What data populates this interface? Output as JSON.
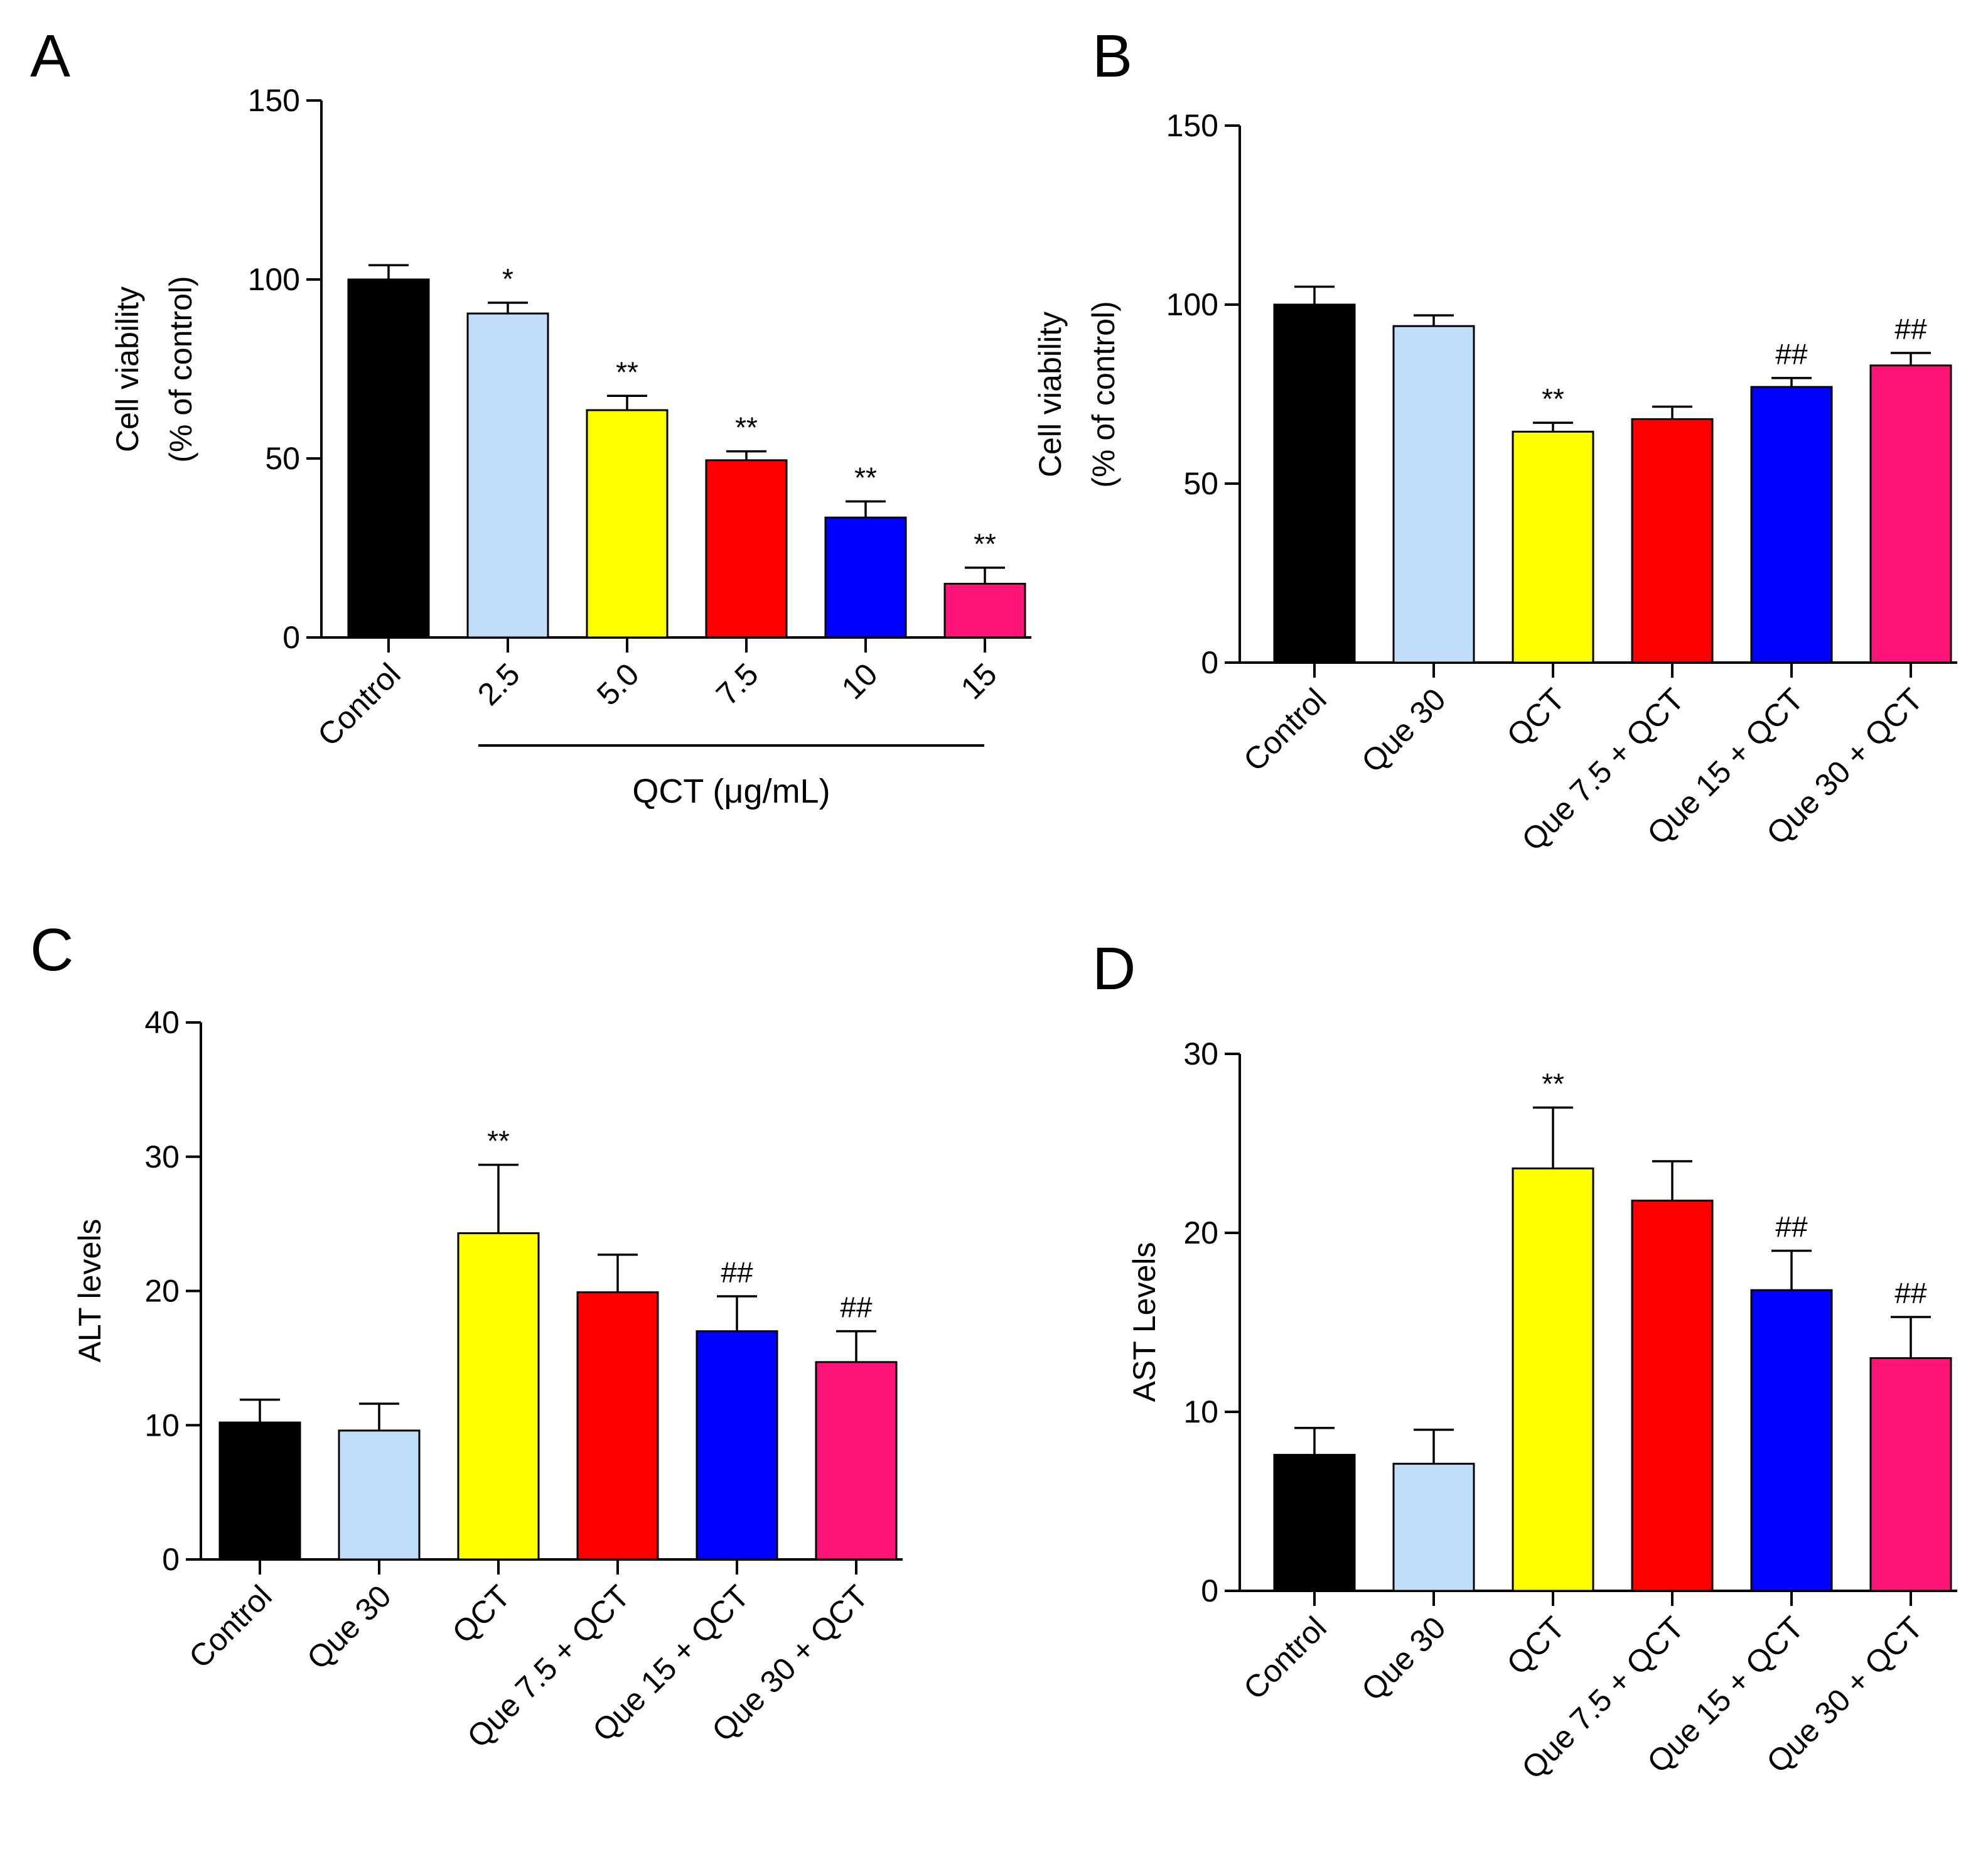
{
  "colors": {
    "Control": "#000000",
    "light-blue": "#c0defa",
    "yellow": "#ffff00",
    "red": "#ff0000",
    "blue": "#0000ff",
    "pink": "#ff1477"
  },
  "chart_data": [
    {
      "type": "bar",
      "panel": "A",
      "title": "",
      "xlabel": "",
      "ylabel": [
        "Cell viability",
        "(% of control)"
      ],
      "ylim": [
        0,
        150
      ],
      "yticks": [
        0,
        50,
        100,
        150
      ],
      "grid": false,
      "categories": [
        "Control",
        "2.5",
        "5.0",
        "7.5",
        "10",
        "15"
      ],
      "values": [
        100,
        90.5,
        63.5,
        49.5,
        33.5,
        15
      ],
      "errors": [
        4,
        3,
        4,
        2.5,
        4.5,
        4.5
      ],
      "annotations": [
        "",
        "*",
        "**",
        "**",
        "**",
        "**"
      ],
      "bar_colors": [
        "#000000",
        "#c0defa",
        "#ffff00",
        "#ff0000",
        "#0000ff",
        "#ff1477"
      ],
      "group_label": "QCT (μg/mL)"
    },
    {
      "type": "bar",
      "panel": "B",
      "title": "",
      "xlabel": "",
      "ylabel": [
        "Cell viability",
        "(% of control)"
      ],
      "ylim": [
        0,
        150
      ],
      "yticks": [
        0,
        50,
        100,
        150
      ],
      "grid": false,
      "categories": [
        "Control",
        "Que 30",
        "QCT",
        "Que 7.5 + QCT",
        "Que 15 + QCT",
        "Que 30 + QCT"
      ],
      "values": [
        100,
        94,
        64.5,
        68,
        77,
        83
      ],
      "errors": [
        5,
        3,
        2.5,
        3.5,
        2.5,
        3.5
      ],
      "annotations": [
        "",
        "",
        "**",
        "",
        "##",
        "##"
      ],
      "bar_colors": [
        "#000000",
        "#c0defa",
        "#ffff00",
        "#ff0000",
        "#0000ff",
        "#ff1477"
      ]
    },
    {
      "type": "bar",
      "panel": "C",
      "title": "",
      "xlabel": "",
      "ylabel": [
        "ALT levels"
      ],
      "ylim": [
        0,
        40
      ],
      "yticks": [
        0,
        10,
        20,
        30,
        40
      ],
      "grid": false,
      "categories": [
        "Control",
        "Que 30",
        "QCT",
        "Que 7.5 + QCT",
        "Que 15 + QCT",
        "Que 30 + QCT"
      ],
      "values": [
        10.2,
        9.6,
        24.3,
        19.9,
        17,
        14.7
      ],
      "errors": [
        1.7,
        2.0,
        5.1,
        2.8,
        2.6,
        2.3
      ],
      "annotations": [
        "",
        "",
        "**",
        "",
        "##",
        "##"
      ],
      "bar_colors": [
        "#000000",
        "#c0defa",
        "#ffff00",
        "#ff0000",
        "#0000ff",
        "#ff1477"
      ]
    },
    {
      "type": "bar",
      "panel": "D",
      "title": "",
      "xlabel": "",
      "ylabel": [
        "AST Levels"
      ],
      "ylim": [
        0,
        30
      ],
      "yticks": [
        0,
        10,
        20,
        30
      ],
      "grid": false,
      "categories": [
        "Control",
        "Que 30",
        "QCT",
        "Que 7.5 + QCT",
        "Que 15 + QCT",
        "Que 30 + QCT"
      ],
      "values": [
        7.6,
        7.1,
        23.6,
        21.8,
        16.8,
        13
      ],
      "errors": [
        1.5,
        1.9,
        3.4,
        2.2,
        2.2,
        2.3
      ],
      "annotations": [
        "",
        "",
        "**",
        "",
        "##",
        "##"
      ],
      "bar_colors": [
        "#000000",
        "#c0defa",
        "#ffff00",
        "#ff0000",
        "#0000ff",
        "#ff1477"
      ]
    }
  ]
}
